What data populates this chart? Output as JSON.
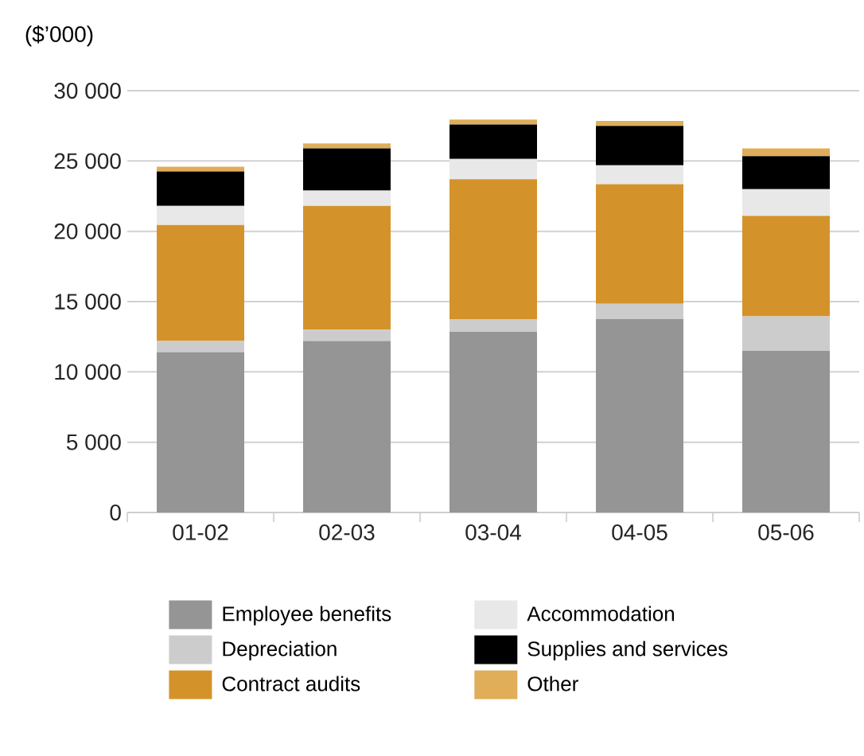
{
  "chart_data": {
    "type": "bar",
    "stacked": true,
    "ylabel": "($’000)",
    "categories": [
      "01-02",
      "02-03",
      "03-04",
      "04-05",
      "05-06"
    ],
    "series": [
      {
        "name": "Employee benefits",
        "color": "#959595",
        "values": [
          11400,
          12200,
          12850,
          13750,
          11500
        ]
      },
      {
        "name": "Depreciation",
        "color": "#cccccc",
        "values": [
          800,
          800,
          900,
          1100,
          2450
        ]
      },
      {
        "name": "Contract audits",
        "color": "#d4932a",
        "values": [
          8250,
          8800,
          9950,
          8500,
          7150
        ]
      },
      {
        "name": "Accommodation",
        "color": "#e8e8e8",
        "values": [
          1350,
          1100,
          1450,
          1350,
          1900
        ]
      },
      {
        "name": "Supplies and services",
        "color": "#000000",
        "values": [
          2450,
          3000,
          2450,
          2800,
          2350
        ]
      },
      {
        "name": "Other",
        "color": "#e0ad58",
        "values": [
          350,
          350,
          350,
          350,
          550
        ]
      }
    ],
    "ylim": [
      0,
      30000
    ],
    "yticks": [
      {
        "value": 0,
        "label": "0"
      },
      {
        "value": 5000,
        "label": "5 000"
      },
      {
        "value": 10000,
        "label": "10 000"
      },
      {
        "value": 15000,
        "label": "15 000"
      },
      {
        "value": 20000,
        "label": "20 000"
      },
      {
        "value": 25000,
        "label": "25 000"
      },
      {
        "value": 30000,
        "label": "30 000"
      }
    ],
    "grid": "y",
    "legend": "bottom"
  }
}
